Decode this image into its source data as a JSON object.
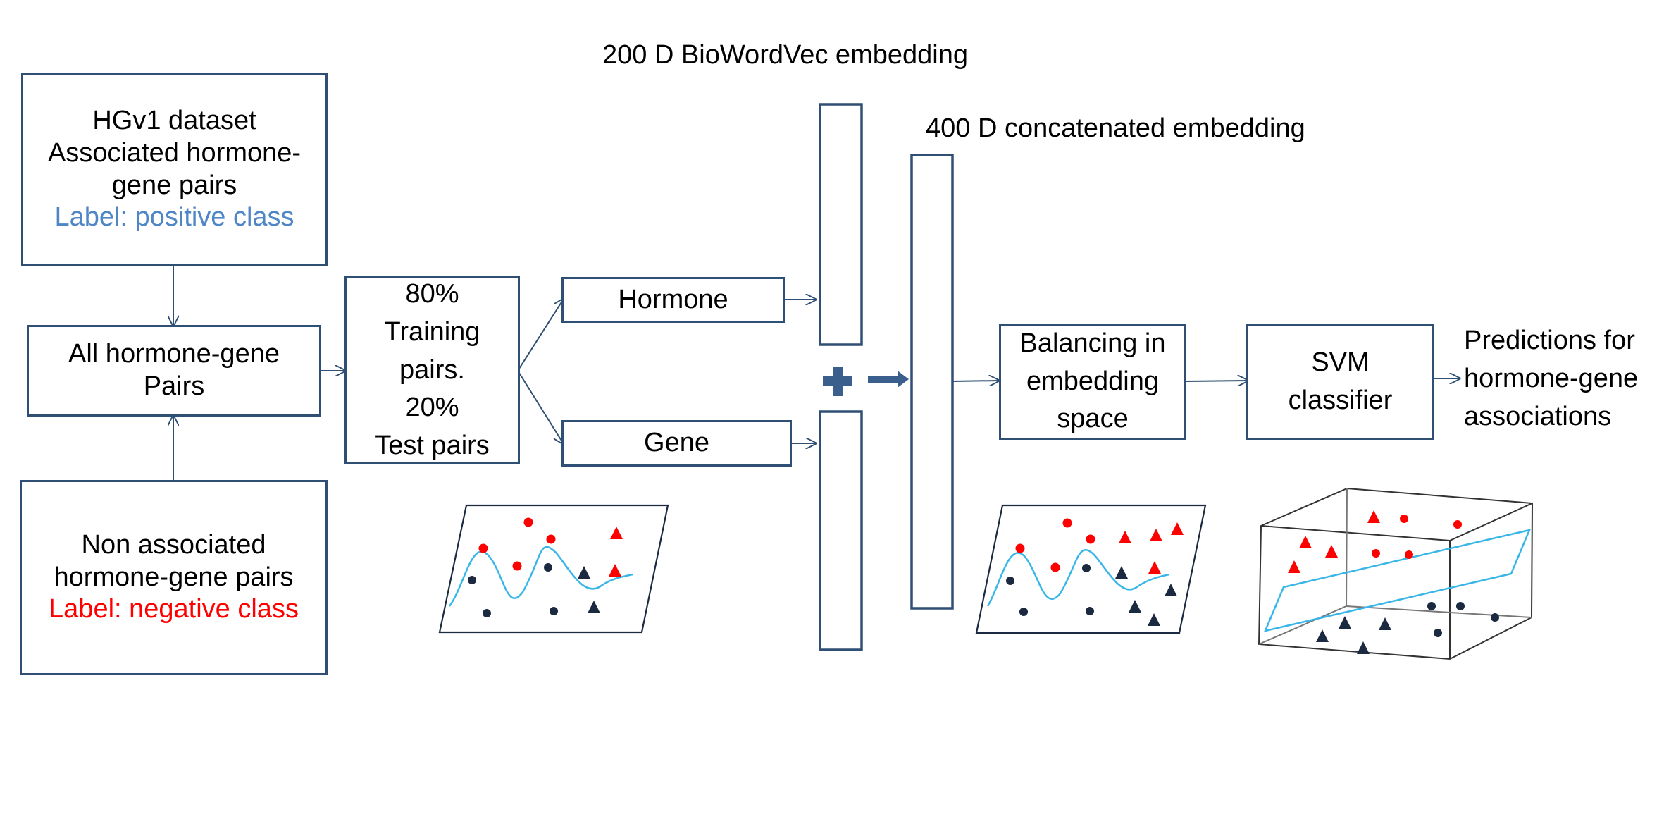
{
  "boxes": {
    "hgv1": {
      "line1": "HGv1 dataset",
      "line2": "Associated hormone-",
      "line3": "gene pairs",
      "label": "Label: positive class"
    },
    "all_pairs": {
      "line1": "All hormone-gene",
      "line2": "Pairs"
    },
    "non_assoc": {
      "line1": "Non associated",
      "line2": "hormone-gene pairs",
      "label": "Label: negative class"
    },
    "split": {
      "line1": "80%",
      "line2": "Training",
      "line3": "pairs.",
      "line4": "20%",
      "line5": "Test pairs"
    },
    "hormone": "Hormone",
    "gene": "Gene",
    "balancing": {
      "line1": "Balancing in",
      "line2": "embedding",
      "line3": "space"
    },
    "svm": {
      "line1": "SVM",
      "line2": "classifier"
    }
  },
  "labels": {
    "embedding_200": "200 D BioWordVec embedding",
    "embedding_400": "400 D concatenated embedding",
    "predictions_line1": "Predictions for",
    "predictions_line2": "hormone-gene",
    "predictions_line3": "associations"
  },
  "colors": {
    "box_border": "#2f4f74",
    "positive_label": "#4f86c6",
    "negative_label": "#ff0000",
    "positive_marker": "#ff0000",
    "negative_marker": "#1b2a41",
    "decision_curve": "#38b6e8"
  },
  "icons": {
    "plus": "plus-icon",
    "concat_arrow": "arrow-right-icon"
  }
}
